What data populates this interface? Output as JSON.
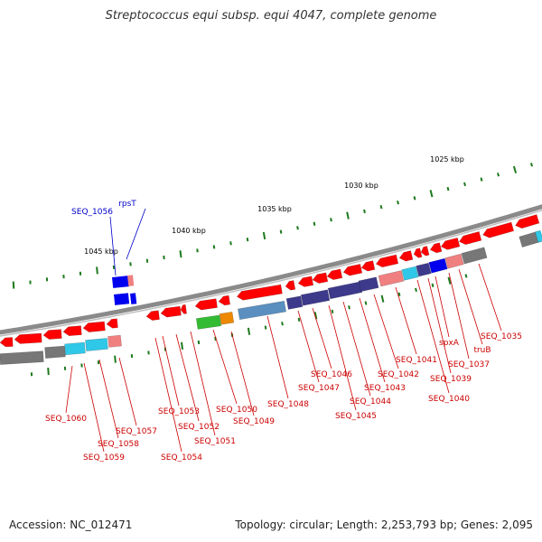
{
  "title": "Streptococcus equi subsp. equi 4047, complete genome",
  "accession": "Accession: NC_012471",
  "topology": "Topology: circular; Length: 2,253,793 bp; Genes: 2,095",
  "colors": {
    "backbone": "#8a8a8a",
    "scale_ticks": "#1d7a1d",
    "gene_label": "#cc0000",
    "rna_label": "#0000cc",
    "red_gene": "#ff0000",
    "pink_gene": "#f08080",
    "navy_gene": "#3d3a8c",
    "steel_gene": "#5a8fc0",
    "cyan_gene": "#30c8e8",
    "green_gene": "#33bb33",
    "orange_gene": "#ee8800",
    "gray_gene": "#777777",
    "blue_gene": "#0000ee"
  },
  "scale_labels": [
    "1025 kbp",
    "1030 kbp",
    "1035 kbp",
    "1040 kbp",
    "1045 kbp"
  ],
  "rna_labels": [
    "SEQ_1056",
    "rpsT"
  ],
  "gene_labels": [
    "SEQ_1035",
    "truB",
    "SEQ_1037",
    "spxA",
    "SEQ_1039",
    "SEQ_1040",
    "SEQ_1041",
    "SEQ_1042",
    "SEQ_1043",
    "SEQ_1044",
    "SEQ_1045",
    "SEQ_1046",
    "SEQ_1047",
    "SEQ_1048",
    "SEQ_1049",
    "SEQ_1050",
    "SEQ_1051",
    "SEQ_1052",
    "SEQ_1053",
    "SEQ_1054",
    "SEQ_1057",
    "SEQ_1058",
    "SEQ_1059",
    "SEQ_1060"
  ]
}
